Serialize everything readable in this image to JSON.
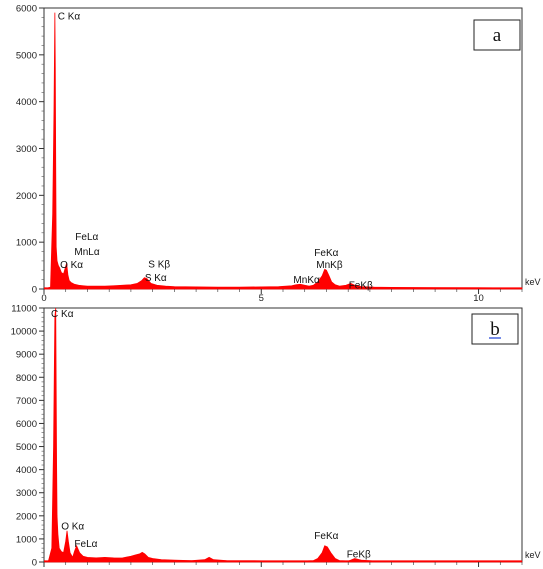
{
  "chart_data": [
    {
      "type": "area",
      "panel_label": "a",
      "xlabel": "keV",
      "ylabel": "",
      "xlim": [
        0,
        11.0
      ],
      "ylim": [
        0,
        6000
      ],
      "xticks": [
        0,
        5,
        10
      ],
      "yticks": [
        0,
        1000,
        2000,
        3000,
        4000,
        5000,
        6000
      ],
      "grid": false,
      "color": "#ff0000",
      "series": [
        {
          "x": [
            0.0,
            0.15,
            0.2,
            0.23,
            0.25,
            0.26,
            0.27,
            0.28,
            0.3,
            0.33,
            0.36,
            0.4,
            0.45,
            0.48,
            0.52,
            0.55,
            0.58,
            0.62,
            0.66,
            0.7,
            0.75,
            0.8,
            0.9,
            1.0,
            1.2,
            1.4,
            1.6,
            1.8,
            2.0,
            2.15,
            2.25,
            2.31,
            2.37,
            2.46,
            2.6,
            2.8,
            3.0,
            3.5,
            4.0,
            4.5,
            5.0,
            5.4,
            5.7,
            5.8,
            5.9,
            6.0,
            6.1,
            6.2,
            6.3,
            6.4,
            6.46,
            6.5,
            6.56,
            6.62,
            6.7,
            6.8,
            6.95,
            7.06,
            7.15,
            7.3,
            7.6,
            8.0,
            9.0,
            10.0,
            11.0
          ],
          "y": [
            0,
            40,
            1600,
            3800,
            5900,
            4700,
            2600,
            900,
            600,
            500,
            450,
            350,
            320,
            420,
            550,
            300,
            180,
            140,
            120,
            100,
            90,
            80,
            70,
            60,
            60,
            60,
            70,
            80,
            90,
            120,
            180,
            240,
            220,
            120,
            80,
            60,
            50,
            45,
            40,
            40,
            45,
            50,
            70,
            90,
            100,
            80,
            60,
            80,
            150,
            280,
            420,
            400,
            280,
            150,
            90,
            60,
            80,
            120,
            80,
            50,
            40,
            35,
            30,
            25,
            20
          ]
        }
      ],
      "annotations": [
        {
          "text": "C Kα",
          "x": 0.27,
          "y": 5750
        },
        {
          "text": "FeLα",
          "x": 0.72,
          "y": 1050
        },
        {
          "text": "MnLα",
          "x": 0.7,
          "y": 730
        },
        {
          "text": "O Kα",
          "x": 0.6,
          "y": 450
        },
        {
          "text": "S Kβ",
          "x": 2.4,
          "y": 460
        },
        {
          "text": "S Kα",
          "x": 2.32,
          "y": 170
        },
        {
          "text": "FeKα",
          "x": 6.45,
          "y": 700
        },
        {
          "text": "MnKβ",
          "x": 6.45,
          "y": 450
        },
        {
          "text": "MnKα",
          "x": 5.97,
          "y": 130
        },
        {
          "text": "FeKβ",
          "x": 7.15,
          "y": 10
        }
      ]
    },
    {
      "type": "area",
      "panel_label": "b",
      "xlabel": "keV",
      "ylabel": "",
      "xlim": [
        0,
        11.0
      ],
      "ylim": [
        0,
        11000
      ],
      "xticks": [],
      "yticks": [
        0,
        1000,
        2000,
        3000,
        4000,
        5000,
        6000,
        7000,
        8000,
        9000,
        10000,
        11000
      ],
      "grid": false,
      "color": "#ff0000",
      "series": [
        {
          "x": [
            0.0,
            0.1,
            0.18,
            0.22,
            0.25,
            0.27,
            0.28,
            0.29,
            0.3,
            0.32,
            0.35,
            0.4,
            0.45,
            0.5,
            0.53,
            0.56,
            0.6,
            0.66,
            0.7,
            0.75,
            0.82,
            0.9,
            1.0,
            1.2,
            1.4,
            1.6,
            1.8,
            2.0,
            2.1,
            2.2,
            2.26,
            2.32,
            2.4,
            2.5,
            2.7,
            3.0,
            3.4,
            3.7,
            3.8,
            3.9,
            4.2,
            5.0,
            5.5,
            6.0,
            6.2,
            6.3,
            6.4,
            6.46,
            6.52,
            6.6,
            6.7,
            6.8,
            7.0,
            7.06,
            7.15,
            7.3,
            7.6,
            8.0,
            9.0,
            10.0,
            11.0
          ],
          "y": [
            0,
            30,
            600,
            5000,
            10600,
            11000,
            7500,
            4200,
            2000,
            1200,
            600,
            450,
            400,
            900,
            1350,
            900,
            400,
            200,
            450,
            700,
            400,
            250,
            200,
            180,
            200,
            180,
            170,
            250,
            300,
            350,
            420,
            350,
            200,
            150,
            100,
            80,
            60,
            100,
            200,
            100,
            60,
            50,
            40,
            40,
            60,
            150,
            400,
            700,
            650,
            400,
            150,
            60,
            40,
            80,
            150,
            80,
            40,
            30,
            25,
            20,
            15
          ]
        }
      ],
      "annotations": [
        {
          "text": "C Kα",
          "x": 0.3,
          "y": 10600
        },
        {
          "text": "O Kα",
          "x": 0.58,
          "y": 1400
        },
        {
          "text": "FeLα",
          "x": 0.7,
          "y": 650
        },
        {
          "text": "FeKα",
          "x": 6.45,
          "y": 1000
        },
        {
          "text": "FeKβ",
          "x": 7.15,
          "y": 200
        }
      ]
    }
  ]
}
